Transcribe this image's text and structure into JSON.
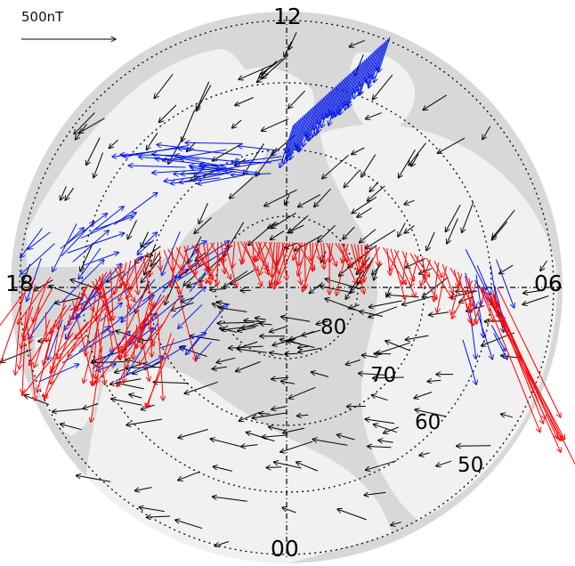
{
  "scale": {
    "label": "500nT"
  },
  "mlt_labels": {
    "noon": "12",
    "dawn": "06",
    "dusk": "18",
    "midnight": "00"
  },
  "lat_labels": {
    "l80": "80",
    "l70": "70",
    "l60": "60",
    "l50": "50"
  },
  "colors": {
    "ocean": "#d8d8d8",
    "land": "#f1f1f1",
    "grid": "#000000",
    "vector_black": "#000000",
    "vector_blue": "#0018e8",
    "vector_red": "#ff0000"
  }
}
